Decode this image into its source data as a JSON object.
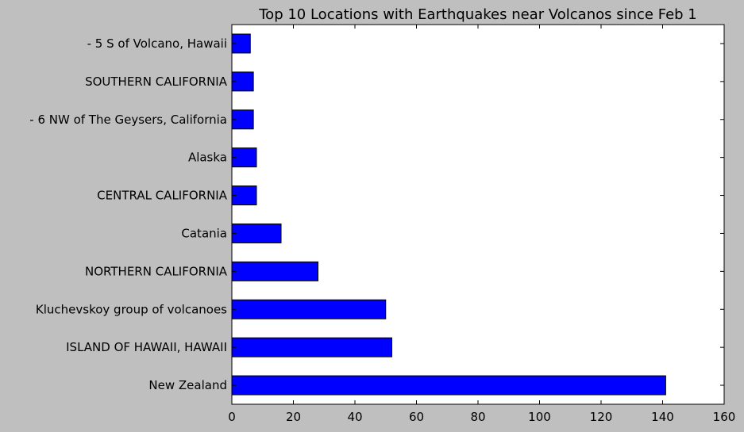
{
  "chart_data": {
    "type": "bar",
    "orientation": "horizontal",
    "title": "Top 10 Locations with Earthquakes near Volcanos since Feb 1",
    "xlabel": "",
    "ylabel": "",
    "categories": [
      "New Zealand",
      "ISLAND OF HAWAII, HAWAII",
      "Kluchevskoy group of volcanoes",
      "NORTHERN CALIFORNIA",
      "Catania",
      "CENTRAL CALIFORNIA",
      "Alaska",
      "- 6 NW of The Geysers, California",
      "SOUTHERN CALIFORNIA",
      "- 5 S of Volcano, Hawaii"
    ],
    "values": [
      141,
      52,
      50,
      28,
      16,
      8,
      8,
      7,
      7,
      6
    ],
    "xlim": [
      0,
      160
    ],
    "xticks": [
      0,
      20,
      40,
      60,
      80,
      100,
      120,
      140,
      160
    ],
    "xtick_labels": [
      "0",
      "20",
      "40",
      "60",
      "80",
      "100",
      "120",
      "140",
      "160"
    ],
    "category_order": "first category at bottom",
    "grid": false,
    "legend": "none",
    "bar_color": "#0000ff",
    "edge_color": "#000000"
  }
}
